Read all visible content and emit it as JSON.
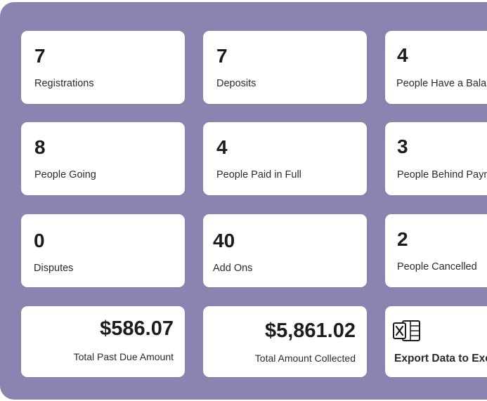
{
  "stats": [
    {
      "value": "7",
      "label": "Registrations"
    },
    {
      "value": "7",
      "label": "Deposits"
    },
    {
      "value": "4",
      "label": "People Have a Balance"
    },
    {
      "value": "8",
      "label": "People Going"
    },
    {
      "value": "4",
      "label": "People Paid in Full"
    },
    {
      "value": "3",
      "label": "People Behind Payment"
    },
    {
      "value": "0",
      "label": "Disputes"
    },
    {
      "value": "40",
      "label": "Add Ons"
    },
    {
      "value": "2",
      "label": "People Cancelled"
    }
  ],
  "totals": {
    "past_due": {
      "value": "$586.07",
      "label": "Total Past Due Amount"
    },
    "collected": {
      "value": "$5,861.02",
      "label": "Total Amount Collected"
    }
  },
  "export": {
    "label": "Export Data to Excel",
    "icon": "excel-icon"
  }
}
